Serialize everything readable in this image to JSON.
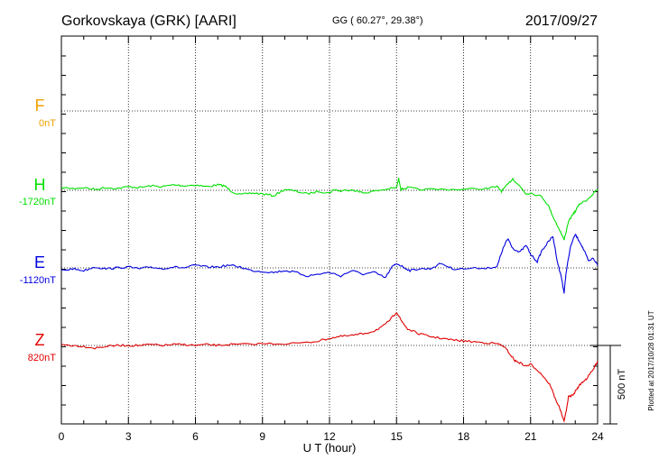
{
  "header": {
    "station": "Gorkovskaya (GRK)  [AARI]",
    "coords": "GG ( 60.27°,  29.38°)",
    "date": "2017/09/27"
  },
  "side_note": "Plotted at 2017/10/28 01:31  UT",
  "scale_bar_label": "500 nT",
  "chart_data": {
    "type": "line",
    "xlabel": "U T (hour)",
    "xlim": [
      0,
      24
    ],
    "x_ticks": [
      "0",
      "3",
      "6",
      "9",
      "12",
      "15",
      "18",
      "21",
      "24"
    ],
    "grid": true,
    "series": [
      {
        "name": "F",
        "offset": "0nT",
        "color": "#f0a000",
        "values": []
      },
      {
        "name": "H",
        "offset": "-1720nT",
        "color": "#00e000",
        "points": [
          [
            0,
            208
          ],
          [
            0.5,
            209
          ],
          [
            1,
            208
          ],
          [
            1.5,
            210
          ],
          [
            2,
            208
          ],
          [
            2.5,
            209
          ],
          [
            3,
            207
          ],
          [
            3.5,
            208
          ],
          [
            4,
            206
          ],
          [
            4.5,
            207
          ],
          [
            5,
            205
          ],
          [
            5.5,
            206
          ],
          [
            6,
            205
          ],
          [
            6.5,
            207
          ],
          [
            7,
            205
          ],
          [
            7.3,
            206
          ],
          [
            7.6,
            212
          ],
          [
            8,
            216
          ],
          [
            8.5,
            214
          ],
          [
            9,
            215
          ],
          [
            9.5,
            217
          ],
          [
            10,
            210
          ],
          [
            10.5,
            212
          ],
          [
            11,
            215
          ],
          [
            11.5,
            212
          ],
          [
            12,
            214
          ],
          [
            12.2,
            210
          ],
          [
            12.5,
            212
          ],
          [
            13,
            210
          ],
          [
            13.5,
            214
          ],
          [
            14,
            212
          ],
          [
            14.5,
            210
          ],
          [
            15,
            208
          ],
          [
            15.1,
            198
          ],
          [
            15.2,
            210
          ],
          [
            15.5,
            208
          ],
          [
            16,
            210
          ],
          [
            17,
            210
          ],
          [
            18,
            210
          ],
          [
            19,
            209
          ],
          [
            19.5,
            207
          ],
          [
            19.7,
            212
          ],
          [
            20,
            204
          ],
          [
            20.2,
            198
          ],
          [
            20.5,
            206
          ],
          [
            20.8,
            215
          ],
          [
            21,
            214
          ],
          [
            21.5,
            218
          ],
          [
            21.8,
            228
          ],
          [
            22,
            240
          ],
          [
            22.3,
            255
          ],
          [
            22.5,
            266
          ],
          [
            22.7,
            245
          ],
          [
            22.9,
            238
          ],
          [
            23,
            234
          ],
          [
            23.2,
            226
          ],
          [
            23.5,
            222
          ],
          [
            23.8,
            215
          ],
          [
            24,
            210
          ]
        ]
      },
      {
        "name": "E",
        "offset": "-1120nT",
        "color": "#0000e0",
        "points": [
          [
            0,
            300
          ],
          [
            0.5,
            298
          ],
          [
            1,
            300
          ],
          [
            1.5,
            296
          ],
          [
            2,
            298
          ],
          [
            2.5,
            297
          ],
          [
            3,
            296
          ],
          [
            3.5,
            298
          ],
          [
            4,
            296
          ],
          [
            4.5,
            298
          ],
          [
            5,
            296
          ],
          [
            5.5,
            297
          ],
          [
            6,
            294
          ],
          [
            6.5,
            296
          ],
          [
            7,
            296
          ],
          [
            7.5,
            294
          ],
          [
            8,
            296
          ],
          [
            8.5,
            300
          ],
          [
            9,
            301
          ],
          [
            9.5,
            302
          ],
          [
            10,
            300
          ],
          [
            10.5,
            302
          ],
          [
            11,
            306
          ],
          [
            11.5,
            304
          ],
          [
            12,
            302
          ],
          [
            12.5,
            306
          ],
          [
            13,
            300
          ],
          [
            13.5,
            304
          ],
          [
            14,
            302
          ],
          [
            14.5,
            308
          ],
          [
            14.8,
            296
          ],
          [
            15,
            292
          ],
          [
            15.3,
            296
          ],
          [
            15.6,
            300
          ],
          [
            16,
            298
          ],
          [
            16.5,
            298
          ],
          [
            17,
            292
          ],
          [
            17.5,
            298
          ],
          [
            18,
            298
          ],
          [
            19,
            297
          ],
          [
            19.5,
            296
          ],
          [
            19.7,
            280
          ],
          [
            19.9,
            268
          ],
          [
            20,
            265
          ],
          [
            20.2,
            275
          ],
          [
            20.5,
            280
          ],
          [
            20.8,
            272
          ],
          [
            21,
            282
          ],
          [
            21.3,
            290
          ],
          [
            21.5,
            278
          ],
          [
            21.8,
            268
          ],
          [
            22,
            262
          ],
          [
            22.2,
            290
          ],
          [
            22.4,
            310
          ],
          [
            22.5,
            325
          ],
          [
            22.6,
            300
          ],
          [
            22.8,
            272
          ],
          [
            23,
            260
          ],
          [
            23.2,
            268
          ],
          [
            23.4,
            278
          ],
          [
            23.6,
            290
          ],
          [
            23.8,
            286
          ],
          [
            24,
            294
          ]
        ]
      },
      {
        "name": "Z",
        "offset": "820nT",
        "color": "#e00000",
        "points": [
          [
            0,
            382
          ],
          [
            0.5,
            383
          ],
          [
            1,
            384
          ],
          [
            1.5,
            386
          ],
          [
            2,
            384
          ],
          [
            2.5,
            383
          ],
          [
            3,
            383
          ],
          [
            3.5,
            383
          ],
          [
            4,
            382
          ],
          [
            4.5,
            383
          ],
          [
            5,
            382
          ],
          [
            5.5,
            382
          ],
          [
            6,
            383
          ],
          [
            6.5,
            382
          ],
          [
            7,
            383
          ],
          [
            7.5,
            382
          ],
          [
            8,
            382
          ],
          [
            9,
            381
          ],
          [
            10,
            381
          ],
          [
            11,
            380
          ],
          [
            11.5,
            378
          ],
          [
            12,
            375
          ],
          [
            12.5,
            373
          ],
          [
            13,
            372
          ],
          [
            13.5,
            370
          ],
          [
            14,
            367
          ],
          [
            14.5,
            360
          ],
          [
            14.8,
            352
          ],
          [
            15,
            346
          ],
          [
            15.2,
            355
          ],
          [
            15.5,
            365
          ],
          [
            16,
            370
          ],
          [
            16.5,
            373
          ],
          [
            17,
            375
          ],
          [
            17.5,
            377
          ],
          [
            18,
            378
          ],
          [
            18.5,
            379
          ],
          [
            19,
            380
          ],
          [
            19.5,
            381
          ],
          [
            19.8,
            384
          ],
          [
            20,
            390
          ],
          [
            20.3,
            400
          ],
          [
            20.5,
            402
          ],
          [
            20.8,
            406
          ],
          [
            21,
            404
          ],
          [
            21.3,
            410
          ],
          [
            21.6,
            418
          ],
          [
            21.9,
            428
          ],
          [
            22.1,
            442
          ],
          [
            22.3,
            452
          ],
          [
            22.5,
            468
          ],
          [
            22.7,
            440
          ],
          [
            22.9,
            438
          ],
          [
            23.1,
            430
          ],
          [
            23.3,
            424
          ],
          [
            23.5,
            420
          ],
          [
            23.8,
            410
          ],
          [
            24,
            400
          ]
        ]
      }
    ]
  }
}
